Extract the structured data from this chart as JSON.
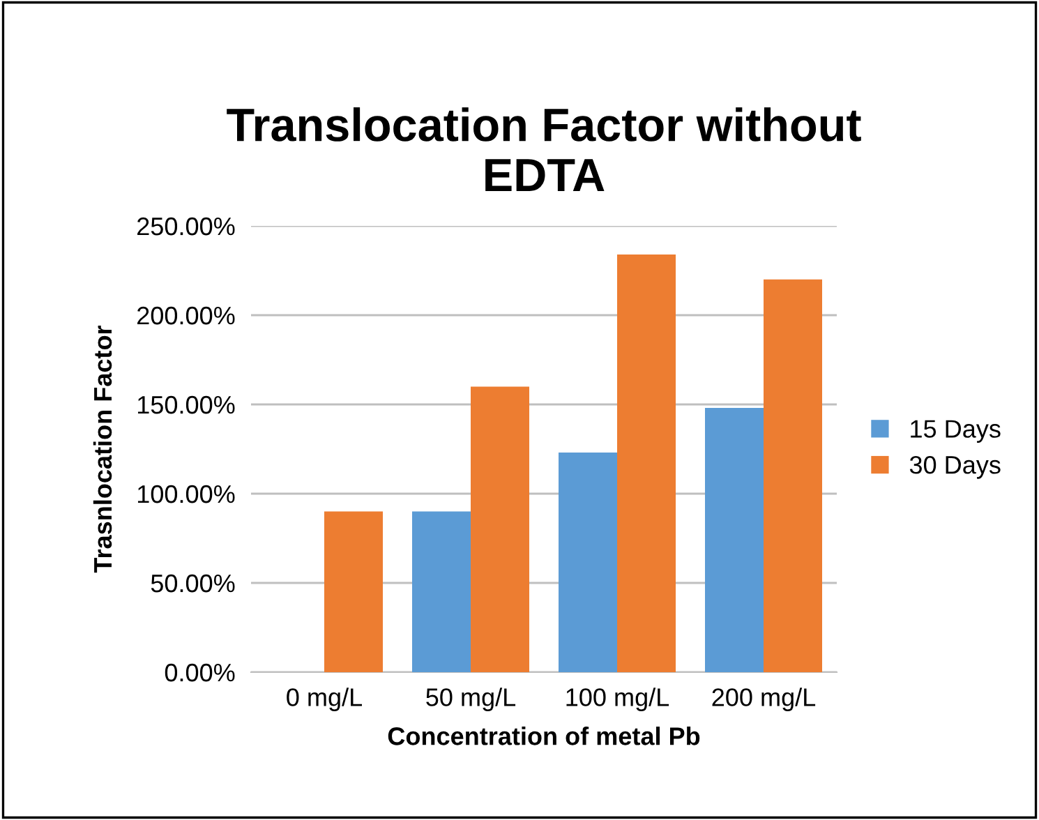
{
  "chart_data": {
    "type": "bar",
    "title": "Translocation Factor without\nEDTA",
    "xlabel": "Concentration of metal Pb",
    "ylabel": "Trasnlocation Factor",
    "categories": [
      "0 mg/L",
      "50 mg/L",
      "100 mg/L",
      "200 mg/L"
    ],
    "series": [
      {
        "name": "15 Days",
        "color": "#5b9bd5",
        "values": [
          0,
          90,
          123,
          148
        ]
      },
      {
        "name": "30 Days",
        "color": "#ed7d31",
        "values": [
          90,
          160,
          234,
          220
        ]
      }
    ],
    "ylim": [
      0,
      250
    ],
    "yticks": [
      {
        "value": 0,
        "label": "0.00%"
      },
      {
        "value": 50,
        "label": "50.00%"
      },
      {
        "value": 100,
        "label": "100.00%"
      },
      {
        "value": 150,
        "label": "150.00%"
      },
      {
        "value": 200,
        "label": "200.00%"
      },
      {
        "value": 250,
        "label": "250.00%"
      }
    ],
    "grid": "y",
    "legend": "right"
  }
}
